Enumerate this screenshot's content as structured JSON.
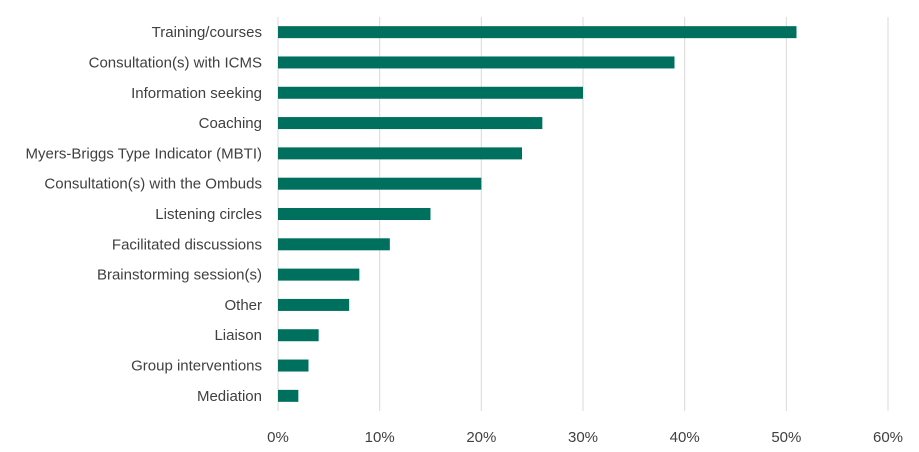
{
  "chart_data": {
    "type": "bar",
    "orientation": "horizontal",
    "categories": [
      "Training/courses",
      "Consultation(s) with ICMS",
      "Information seeking",
      "Coaching",
      "Myers-Briggs Type Indicator (MBTI)",
      "Consultation(s) with the Ombuds",
      "Listening circles",
      "Facilitated discussions",
      "Brainstorming session(s)",
      "Other",
      "Liaison",
      "Group interventions",
      "Mediation"
    ],
    "values": [
      51,
      39,
      30,
      26,
      24,
      20,
      15,
      11,
      8,
      7,
      4,
      3,
      2
    ],
    "xlim": [
      0,
      60
    ],
    "x_ticks": [
      "0%",
      "10%",
      "20%",
      "30%",
      "40%",
      "50%",
      "60%"
    ],
    "grid": "vertical",
    "bar_color": "#00705e",
    "title": "",
    "xlabel": "",
    "ylabel": ""
  }
}
